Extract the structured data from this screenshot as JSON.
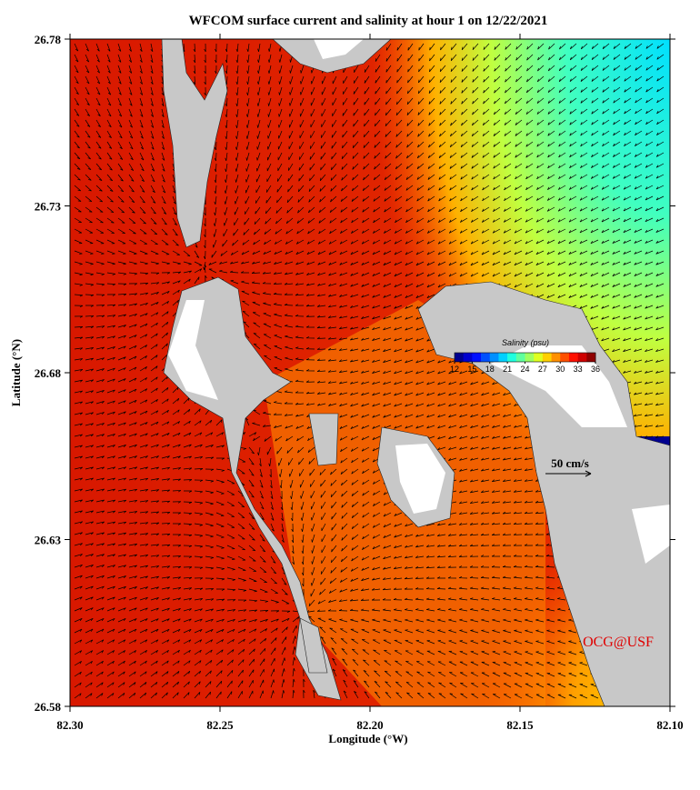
{
  "chart_data": {
    "type": "vector-map",
    "title": "WFCOM surface current and salinity at hour 1 on 12/22/2021",
    "xlabel": "Longitude (°W)",
    "ylabel": "Latitude (°N)",
    "xlim": [
      82.3,
      82.1
    ],
    "xticks": [
      {
        "value": 82.3,
        "label": "82.30"
      },
      82.25,
      {
        "value": 82.2,
        "label": "82.20"
      },
      82.15,
      {
        "value": 82.1,
        "label": "82.10"
      }
    ],
    "ylim": [
      26.58,
      26.78
    ],
    "yticks": [
      26.58,
      26.63,
      26.68,
      26.73,
      26.78
    ],
    "colorbar": {
      "label": "Salinity (psu)",
      "lim": [
        12,
        36
      ],
      "ticks": [
        12,
        15,
        18,
        21,
        24,
        27,
        30,
        33,
        36
      ],
      "colors": [
        "#00008f",
        "#0000cf",
        "#0010ff",
        "#0050ff",
        "#0090ff",
        "#00d0ff",
        "#20ffdf",
        "#60ff9f",
        "#9fff60",
        "#dfff20",
        "#ffd000",
        "#ff9000",
        "#ff5000",
        "#ff1000",
        "#cf0000",
        "#8f0000"
      ]
    },
    "scale_label": "50 cm/s",
    "credit": "OCG@USF"
  }
}
